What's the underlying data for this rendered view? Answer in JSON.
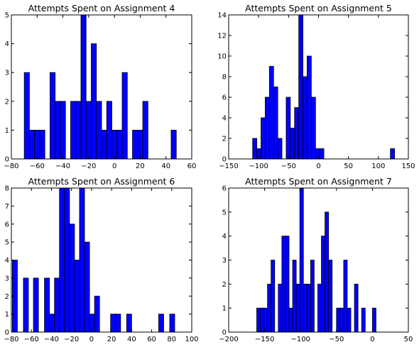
{
  "figure": {
    "bar_color": "#0000ff",
    "edge_color": "#000000",
    "background": "#ffffff"
  },
  "chart_data": [
    {
      "type": "bar",
      "title": "Attempts Spent on Assignment 4",
      "xlabel": "",
      "ylabel": "",
      "xlim": [
        -80,
        60
      ],
      "ylim": [
        0,
        5
      ],
      "xticks": [
        "−80",
        "−60",
        "−40",
        "−20",
        "0",
        "20",
        "40",
        "60"
      ],
      "yticks": [
        "0",
        "1",
        "2",
        "3",
        "4",
        "5"
      ],
      "grid": false,
      "bins": [
        {
          "x0": -70,
          "x1": -66,
          "v": 3
        },
        {
          "x0": -66,
          "x1": -62,
          "v": 1
        },
        {
          "x0": -62,
          "x1": -58,
          "v": 1
        },
        {
          "x0": -58,
          "x1": -54,
          "v": 1
        },
        {
          "x0": -50,
          "x1": -46,
          "v": 3
        },
        {
          "x0": -46,
          "x1": -42,
          "v": 2
        },
        {
          "x0": -42,
          "x1": -38,
          "v": 2
        },
        {
          "x0": -34,
          "x1": -30,
          "v": 2
        },
        {
          "x0": -30,
          "x1": -26,
          "v": 2
        },
        {
          "x0": -26,
          "x1": -22,
          "v": 5
        },
        {
          "x0": -22,
          "x1": -18,
          "v": 2
        },
        {
          "x0": -18,
          "x1": -14,
          "v": 4
        },
        {
          "x0": -14,
          "x1": -10,
          "v": 2
        },
        {
          "x0": -10,
          "x1": -6,
          "v": 1
        },
        {
          "x0": -6,
          "x1": -2,
          "v": 2
        },
        {
          "x0": -2,
          "x1": 2,
          "v": 1
        },
        {
          "x0": 2,
          "x1": 6,
          "v": 1
        },
        {
          "x0": 6,
          "x1": 10,
          "v": 3
        },
        {
          "x0": 14,
          "x1": 18,
          "v": 1
        },
        {
          "x0": 18,
          "x1": 22,
          "v": 1
        },
        {
          "x0": 22,
          "x1": 26,
          "v": 2
        },
        {
          "x0": 44,
          "x1": 48,
          "v": 1
        }
      ]
    },
    {
      "type": "bar",
      "title": "Attempts Spent on Assignment 5",
      "xlabel": "",
      "ylabel": "",
      "xlim": [
        -150,
        150
      ],
      "ylim": [
        0,
        14
      ],
      "xticks": [
        "−150",
        "−100",
        "−50",
        "0",
        "50",
        "100",
        "150"
      ],
      "yticks": [
        "0",
        "2",
        "4",
        "6",
        "8",
        "10",
        "12",
        "14"
      ],
      "grid": false,
      "bins": [
        {
          "x0": -110,
          "x1": -103,
          "v": 2
        },
        {
          "x0": -103,
          "x1": -96,
          "v": 1
        },
        {
          "x0": -96,
          "x1": -89,
          "v": 4
        },
        {
          "x0": -89,
          "x1": -82,
          "v": 6
        },
        {
          "x0": -82,
          "x1": -75,
          "v": 9
        },
        {
          "x0": -75,
          "x1": -68,
          "v": 7
        },
        {
          "x0": -68,
          "x1": -61,
          "v": 2
        },
        {
          "x0": -54,
          "x1": -47,
          "v": 6
        },
        {
          "x0": -47,
          "x1": -40,
          "v": 3
        },
        {
          "x0": -40,
          "x1": -33,
          "v": 5
        },
        {
          "x0": -33,
          "x1": -26,
          "v": 14
        },
        {
          "x0": -26,
          "x1": -19,
          "v": 8
        },
        {
          "x0": -19,
          "x1": -12,
          "v": 10
        },
        {
          "x0": -12,
          "x1": -5,
          "v": 6
        },
        {
          "x0": -5,
          "x1": 2,
          "v": 1
        },
        {
          "x0": 2,
          "x1": 9,
          "v": 1
        },
        {
          "x0": 120,
          "x1": 127,
          "v": 1
        }
      ]
    },
    {
      "type": "bar",
      "title": "Attempts Spent on Assignment 6",
      "xlabel": "",
      "ylabel": "",
      "xlim": [
        -80,
        100
      ],
      "ylim": [
        0,
        8
      ],
      "xticks": [
        "−80",
        "−60",
        "−40",
        "−20",
        "0",
        "20",
        "40",
        "60",
        "80",
        "100"
      ],
      "yticks": [
        "0",
        "1",
        "2",
        "3",
        "4",
        "5",
        "6",
        "7",
        "8"
      ],
      "grid": false,
      "bins": [
        {
          "x0": -79,
          "x1": -74,
          "v": 4
        },
        {
          "x0": -68,
          "x1": -63,
          "v": 3
        },
        {
          "x0": -58,
          "x1": -53,
          "v": 3
        },
        {
          "x0": -47,
          "x1": -42,
          "v": 3
        },
        {
          "x0": -42,
          "x1": -37,
          "v": 1
        },
        {
          "x0": -37,
          "x1": -32,
          "v": 3
        },
        {
          "x0": -32,
          "x1": -27,
          "v": 8
        },
        {
          "x0": -27,
          "x1": -22,
          "v": 8
        },
        {
          "x0": -22,
          "x1": -17,
          "v": 6
        },
        {
          "x0": -17,
          "x1": -12,
          "v": 4
        },
        {
          "x0": -12,
          "x1": -7,
          "v": 8
        },
        {
          "x0": -7,
          "x1": -2,
          "v": 5
        },
        {
          "x0": -2,
          "x1": 3,
          "v": 1
        },
        {
          "x0": 3,
          "x1": 8,
          "v": 2
        },
        {
          "x0": 19,
          "x1": 24,
          "v": 1
        },
        {
          "x0": 24,
          "x1": 29,
          "v": 1
        },
        {
          "x0": 35,
          "x1": 40,
          "v": 1
        },
        {
          "x0": 67,
          "x1": 72,
          "v": 1
        },
        {
          "x0": 78,
          "x1": 83,
          "v": 1
        }
      ]
    },
    {
      "type": "bar",
      "title": "Attempts Spent on Assignment 7",
      "xlabel": "",
      "ylabel": "",
      "xlim": [
        -200,
        50
      ],
      "ylim": [
        0,
        6
      ],
      "xticks": [
        "−200",
        "−150",
        "−100",
        "−50",
        "0",
        "50"
      ],
      "yticks": [
        "0",
        "1",
        "2",
        "3",
        "4",
        "5",
        "6"
      ],
      "grid": false,
      "bins": [
        {
          "x0": -161,
          "x1": -156,
          "v": 1
        },
        {
          "x0": -156,
          "x1": -151,
          "v": 1
        },
        {
          "x0": -151,
          "x1": -146,
          "v": 1
        },
        {
          "x0": -146,
          "x1": -141,
          "v": 2
        },
        {
          "x0": -141,
          "x1": -136,
          "v": 3
        },
        {
          "x0": -131,
          "x1": -126,
          "v": 2
        },
        {
          "x0": -126,
          "x1": -121,
          "v": 4
        },
        {
          "x0": -121,
          "x1": -116,
          "v": 4
        },
        {
          "x0": -116,
          "x1": -111,
          "v": 1
        },
        {
          "x0": -111,
          "x1": -106,
          "v": 3
        },
        {
          "x0": -106,
          "x1": -101,
          "v": 2
        },
        {
          "x0": -101,
          "x1": -96,
          "v": 6
        },
        {
          "x0": -96,
          "x1": -91,
          "v": 2
        },
        {
          "x0": -91,
          "x1": -86,
          "v": 2
        },
        {
          "x0": -86,
          "x1": -81,
          "v": 3
        },
        {
          "x0": -76,
          "x1": -71,
          "v": 2
        },
        {
          "x0": -71,
          "x1": -66,
          "v": 4
        },
        {
          "x0": -66,
          "x1": -61,
          "v": 5
        },
        {
          "x0": -61,
          "x1": -56,
          "v": 3
        },
        {
          "x0": -50,
          "x1": -45,
          "v": 1
        },
        {
          "x0": -45,
          "x1": -40,
          "v": 1
        },
        {
          "x0": -40,
          "x1": -35,
          "v": 3
        },
        {
          "x0": -35,
          "x1": -30,
          "v": 1
        },
        {
          "x0": -25,
          "x1": -20,
          "v": 2
        },
        {
          "x0": -15,
          "x1": -10,
          "v": 1
        },
        {
          "x0": 0,
          "x1": 5,
          "v": 1
        }
      ]
    }
  ]
}
